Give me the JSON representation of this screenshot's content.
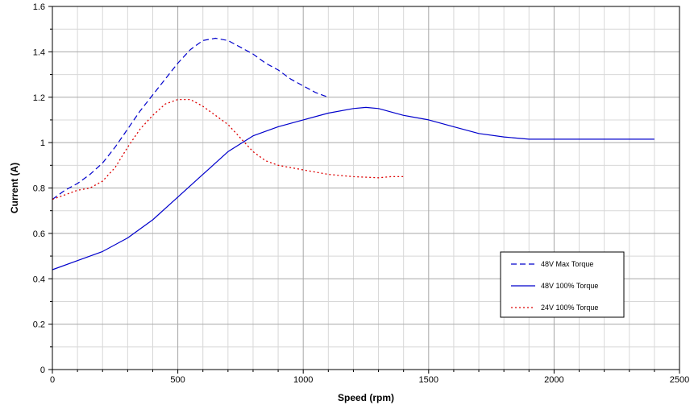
{
  "chart_data": {
    "type": "line",
    "xlabel": "Speed (rpm)",
    "ylabel": "Current (A)",
    "xlim": [
      0,
      2500
    ],
    "ylim": [
      0,
      1.6
    ],
    "x_major_ticks": [
      0,
      500,
      1000,
      1500,
      2000,
      2500
    ],
    "x_tick_labels": [
      "0",
      "500",
      "1000",
      "1500",
      "2000",
      "2500"
    ],
    "y_major_ticks": [
      0,
      0.2,
      0.4,
      0.6,
      0.8,
      1.0,
      1.2,
      1.4,
      1.6
    ],
    "y_tick_labels": [
      "0",
      "0.2",
      "0.4",
      "0.6",
      "0.8",
      "1",
      "1.2",
      "1.4",
      "1.6"
    ],
    "grid": true,
    "legend_position": "lower-right",
    "series": [
      {
        "name": "48V Max Torque",
        "color": "#0000cc",
        "style": "dashed",
        "x": [
          0,
          50,
          100,
          150,
          200,
          250,
          300,
          350,
          400,
          450,
          500,
          550,
          600,
          650,
          700,
          750,
          800,
          850,
          900,
          950,
          1000,
          1050,
          1100
        ],
        "y": [
          0.75,
          0.79,
          0.82,
          0.86,
          0.91,
          0.98,
          1.06,
          1.14,
          1.21,
          1.28,
          1.35,
          1.41,
          1.45,
          1.46,
          1.45,
          1.42,
          1.39,
          1.35,
          1.32,
          1.28,
          1.25,
          1.22,
          1.2
        ]
      },
      {
        "name": "48V 100% Torque",
        "color": "#0000cc",
        "style": "solid",
        "x": [
          0,
          100,
          200,
          300,
          400,
          500,
          600,
          700,
          800,
          900,
          1000,
          1100,
          1200,
          1250,
          1300,
          1400,
          1500,
          1600,
          1700,
          1800,
          1900,
          2000,
          2100,
          2200,
          2300,
          2400
        ],
        "y": [
          0.44,
          0.48,
          0.52,
          0.58,
          0.66,
          0.76,
          0.86,
          0.96,
          1.03,
          1.07,
          1.1,
          1.13,
          1.15,
          1.155,
          1.15,
          1.12,
          1.1,
          1.07,
          1.04,
          1.025,
          1.015,
          1.015,
          1.015,
          1.015,
          1.015,
          1.015
        ]
      },
      {
        "name": "24V 100% Torque",
        "color": "#dd0000",
        "style": "dotted",
        "x": [
          0,
          50,
          100,
          150,
          200,
          250,
          300,
          350,
          400,
          450,
          500,
          550,
          600,
          650,
          700,
          750,
          800,
          850,
          900,
          1000,
          1100,
          1200,
          1300,
          1350,
          1400
        ],
        "y": [
          0.75,
          0.77,
          0.79,
          0.8,
          0.83,
          0.89,
          0.98,
          1.06,
          1.12,
          1.17,
          1.19,
          1.19,
          1.16,
          1.12,
          1.08,
          1.02,
          0.96,
          0.92,
          0.9,
          0.88,
          0.86,
          0.85,
          0.845,
          0.85,
          0.85
        ]
      }
    ]
  }
}
